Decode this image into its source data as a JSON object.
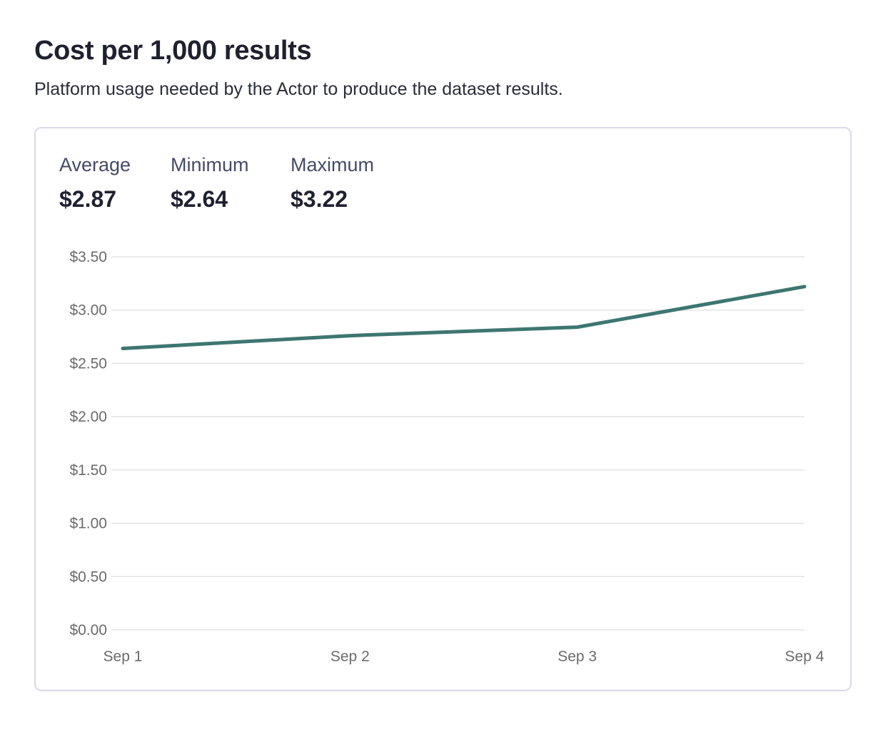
{
  "header": {
    "title": "Cost per 1,000 results",
    "subtitle": "Platform usage needed by the Actor to produce the dataset results."
  },
  "stats": [
    {
      "label": "Average",
      "value": "$2.87"
    },
    {
      "label": "Minimum",
      "value": "$2.64"
    },
    {
      "label": "Maximum",
      "value": "$3.22"
    }
  ],
  "chart_data": {
    "type": "line",
    "title": "",
    "xlabel": "",
    "ylabel": "",
    "categories": [
      "Sep 1",
      "Sep 2",
      "Sep 3",
      "Sep 4"
    ],
    "series": [
      {
        "values": [
          2.64,
          2.76,
          2.84,
          3.22
        ],
        "color": "#3d7670"
      }
    ],
    "ylim": [
      0,
      3.5
    ],
    "yticks": [
      0,
      0.5,
      1,
      1.5,
      2,
      2.5,
      3,
      3.5
    ],
    "ytick_labels": [
      "$0.00",
      "$0.50",
      "$1.00",
      "$1.50",
      "$2.00",
      "$2.50",
      "$3.00",
      "$3.50"
    ],
    "grid": true,
    "legend": "none"
  }
}
